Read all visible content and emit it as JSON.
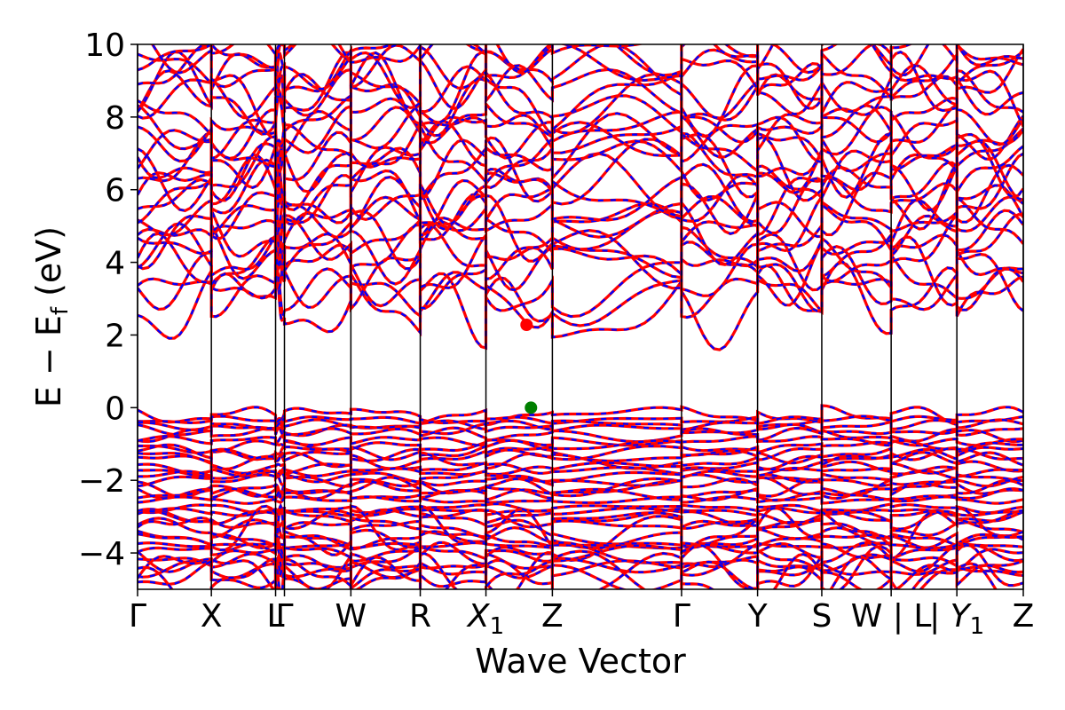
{
  "chart_data": {
    "type": "line",
    "xlabel": "Wave Vector",
    "ylabel": "E − E_f (eV)",
    "ylabel_main": "E − E",
    "ylabel_sub": "f",
    "ylabel_unit": " (eV)",
    "ylim": [
      -5,
      10
    ],
    "yticks": [
      -4,
      -2,
      0,
      2,
      4,
      6,
      8,
      10
    ],
    "ytick_labels": [
      "−4",
      "−2",
      "0",
      "2",
      "4",
      "6",
      "8",
      "10"
    ],
    "grid": false,
    "legend": "none",
    "xlim": [
      0,
      12.0
    ],
    "kpath": [
      {
        "label": "Γ",
        "x": 0.0
      },
      {
        "label": "X",
        "x": 1.0
      },
      {
        "label": "L",
        "x": 1.87
      },
      {
        "label": "Γ",
        "x": 1.99
      },
      {
        "label": "W",
        "x": 2.89
      },
      {
        "label": "R",
        "x": 3.83
      },
      {
        "label": "X",
        "sub": "1",
        "x": 4.72
      },
      {
        "label": "Z",
        "x": 5.62
      },
      {
        "label": "Γ",
        "x": 7.37
      },
      {
        "label": "Y",
        "x": 8.4
      },
      {
        "label": "S",
        "x": 9.27
      },
      {
        "label": "W | L",
        "x": 10.21,
        "text": "W | L"
      },
      {
        "label": "Y",
        "sub": "1",
        "x": 11.1,
        "prefix": "| "
      },
      {
        "label": "Z",
        "x": 12.0
      }
    ],
    "points": [
      {
        "name": "CBM",
        "x": 5.27,
        "y": 2.28,
        "color": "#ff0000"
      },
      {
        "name": "VBM",
        "x": 5.33,
        "y": 0.0,
        "color": "#008000"
      }
    ],
    "series": [
      {
        "color": "#ff0000",
        "style": "solid"
      },
      {
        "color": "#0000ff",
        "style": "dashed"
      }
    ],
    "colors": {
      "up": "#ff0000",
      "down": "#0000ff",
      "axis": "#000000"
    }
  }
}
